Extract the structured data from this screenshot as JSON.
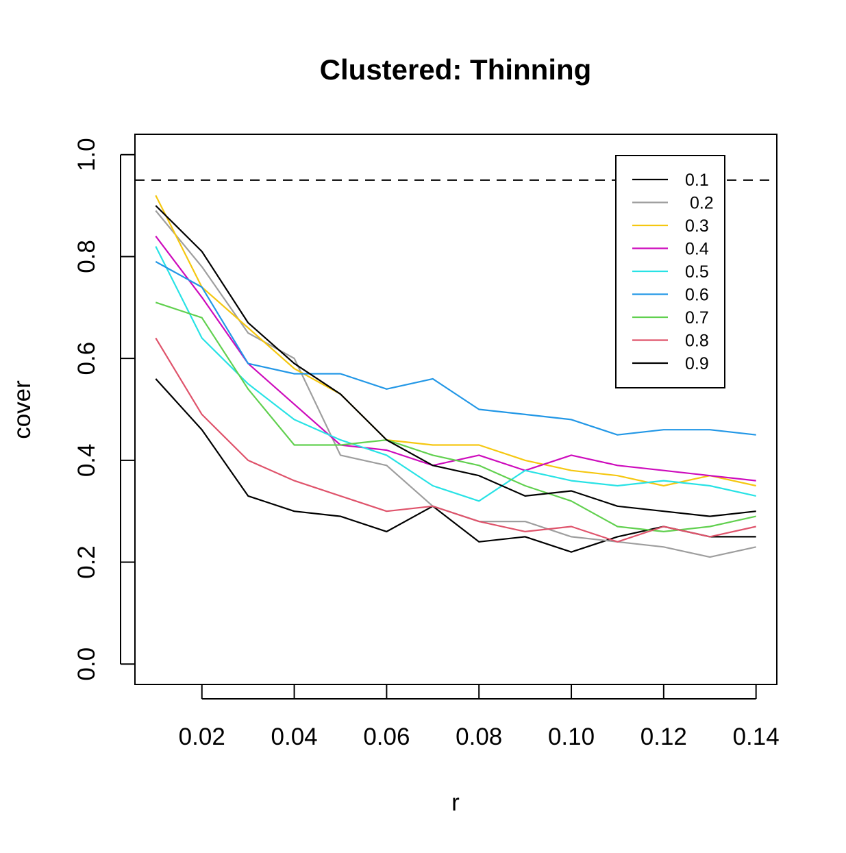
{
  "chart_data": {
    "type": "line",
    "title": "Clustered: Thinning",
    "xlabel": "r",
    "ylabel": "cover",
    "xlim": [
      0.0055,
      0.1445
    ],
    "ylim": [
      -0.04,
      1.04
    ],
    "xticks": [
      0.02,
      0.04,
      0.06,
      0.08,
      0.1,
      0.12,
      0.14
    ],
    "xtick_labels": [
      "0.02",
      "0.04",
      "0.06",
      "0.08",
      "0.10",
      "0.12",
      "0.14"
    ],
    "yticks": [
      0.0,
      0.2,
      0.4,
      0.6,
      0.8,
      1.0
    ],
    "ytick_labels": [
      "0.0",
      "0.2",
      "0.4",
      "0.6",
      "0.8",
      "1.0"
    ],
    "reference_line": {
      "y": 0.95,
      "style": "dashed",
      "color": "#000000"
    },
    "legend_position": "top-right",
    "grid": false,
    "x": [
      0.01,
      0.02,
      0.03,
      0.04,
      0.05,
      0.06,
      0.07,
      0.08,
      0.09,
      0.1,
      0.11,
      0.12,
      0.13,
      0.14
    ],
    "series": [
      {
        "name": "0.1",
        "color": "#000000",
        "values": [
          0.56,
          0.46,
          0.33,
          0.3,
          0.29,
          0.26,
          0.31,
          0.24,
          0.25,
          0.22,
          0.25,
          0.27,
          0.25,
          0.25
        ]
      },
      {
        "name": " 0.2",
        "color": "#9E9E9E",
        "values": [
          0.89,
          0.78,
          0.65,
          0.6,
          0.41,
          0.39,
          0.31,
          0.28,
          0.28,
          0.25,
          0.24,
          0.23,
          0.21,
          0.23
        ]
      },
      {
        "name": "0.3",
        "color": "#F5C710",
        "values": [
          0.92,
          0.74,
          0.66,
          0.58,
          0.53,
          0.44,
          0.43,
          0.43,
          0.4,
          0.38,
          0.37,
          0.35,
          0.37,
          0.35
        ]
      },
      {
        "name": "0.4",
        "color": "#CD0BBC",
        "values": [
          0.84,
          0.72,
          0.59,
          0.51,
          0.43,
          0.42,
          0.39,
          0.41,
          0.38,
          0.41,
          0.39,
          0.38,
          0.37,
          0.36
        ]
      },
      {
        "name": "0.5",
        "color": "#28E2E5",
        "values": [
          0.82,
          0.64,
          0.55,
          0.48,
          0.44,
          0.41,
          0.35,
          0.32,
          0.38,
          0.36,
          0.35,
          0.36,
          0.35,
          0.33
        ]
      },
      {
        "name": "0.6",
        "color": "#2297E6",
        "values": [
          0.79,
          0.74,
          0.59,
          0.57,
          0.57,
          0.54,
          0.56,
          0.5,
          0.49,
          0.48,
          0.45,
          0.46,
          0.46,
          0.45
        ]
      },
      {
        "name": "0.7",
        "color": "#61D04F",
        "values": [
          0.71,
          0.68,
          0.54,
          0.43,
          0.43,
          0.44,
          0.41,
          0.39,
          0.35,
          0.32,
          0.27,
          0.26,
          0.27,
          0.29
        ]
      },
      {
        "name": "0.8",
        "color": "#DF536B",
        "values": [
          0.64,
          0.49,
          0.4,
          0.36,
          0.33,
          0.3,
          0.31,
          0.28,
          0.26,
          0.27,
          0.24,
          0.27,
          0.25,
          0.27
        ]
      },
      {
        "name": "0.9",
        "color": "#000000",
        "values": [
          0.9,
          0.81,
          0.67,
          0.59,
          0.53,
          0.44,
          0.39,
          0.37,
          0.33,
          0.34,
          0.31,
          0.3,
          0.29,
          0.3
        ]
      }
    ]
  }
}
